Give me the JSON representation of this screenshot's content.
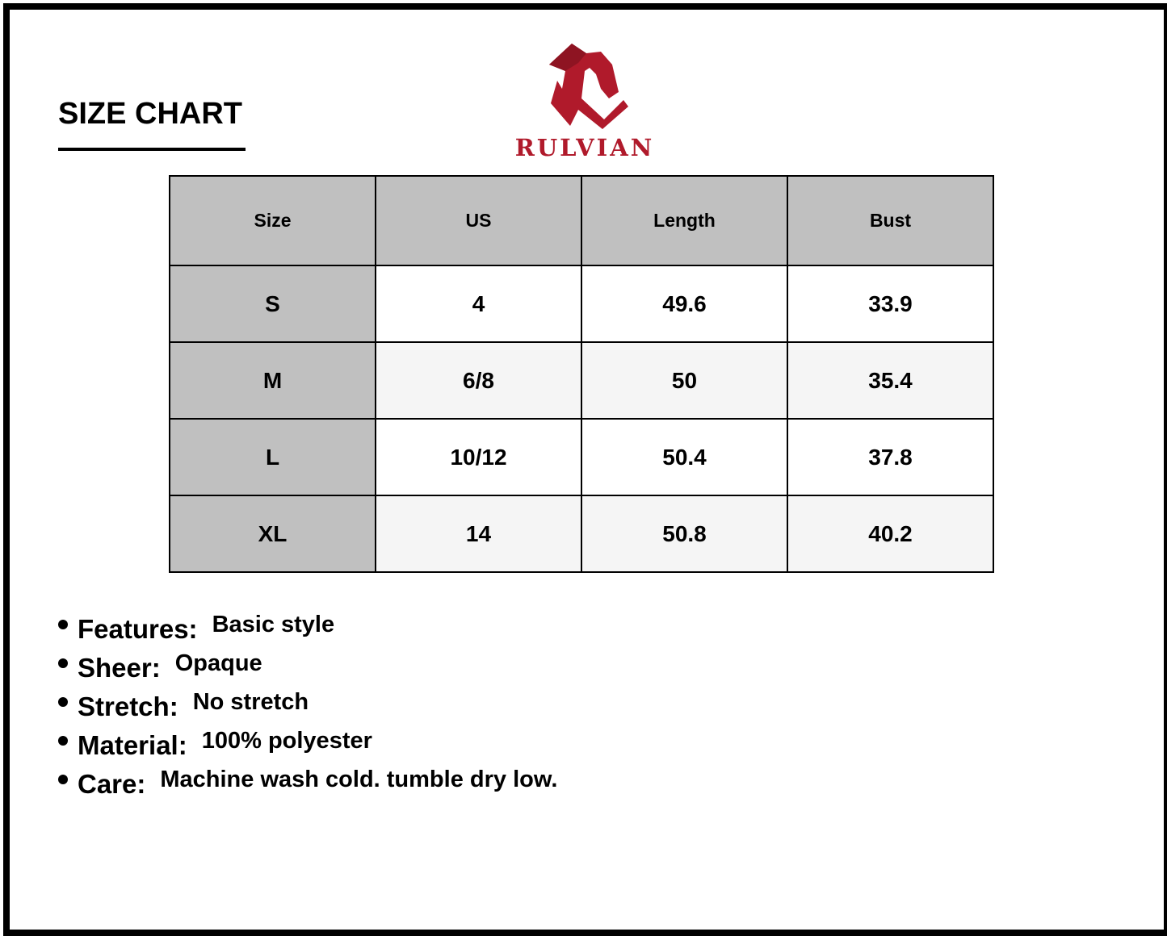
{
  "title": "SIZE CHART",
  "brand": {
    "name": "RULVIAN",
    "color": "#b01a2b"
  },
  "table": {
    "headers": [
      "Size",
      "US",
      "Length",
      "Bust"
    ],
    "rows": [
      [
        "S",
        "4",
        "49.6",
        "33.9"
      ],
      [
        "M",
        "6/8",
        "50",
        "35.4"
      ],
      [
        "L",
        "10/12",
        "50.4",
        "37.8"
      ],
      [
        "XL",
        "14",
        "50.8",
        "40.2"
      ]
    ]
  },
  "specs": [
    {
      "label": "Features:",
      "value": "Basic style"
    },
    {
      "label": "Sheer:",
      "value": "Opaque"
    },
    {
      "label": "Stretch:",
      "value": "No stretch"
    },
    {
      "label": "Material:",
      "value": "100% polyester"
    },
    {
      "label": "Care:",
      "value": "Machine wash cold. tumble dry low."
    }
  ]
}
